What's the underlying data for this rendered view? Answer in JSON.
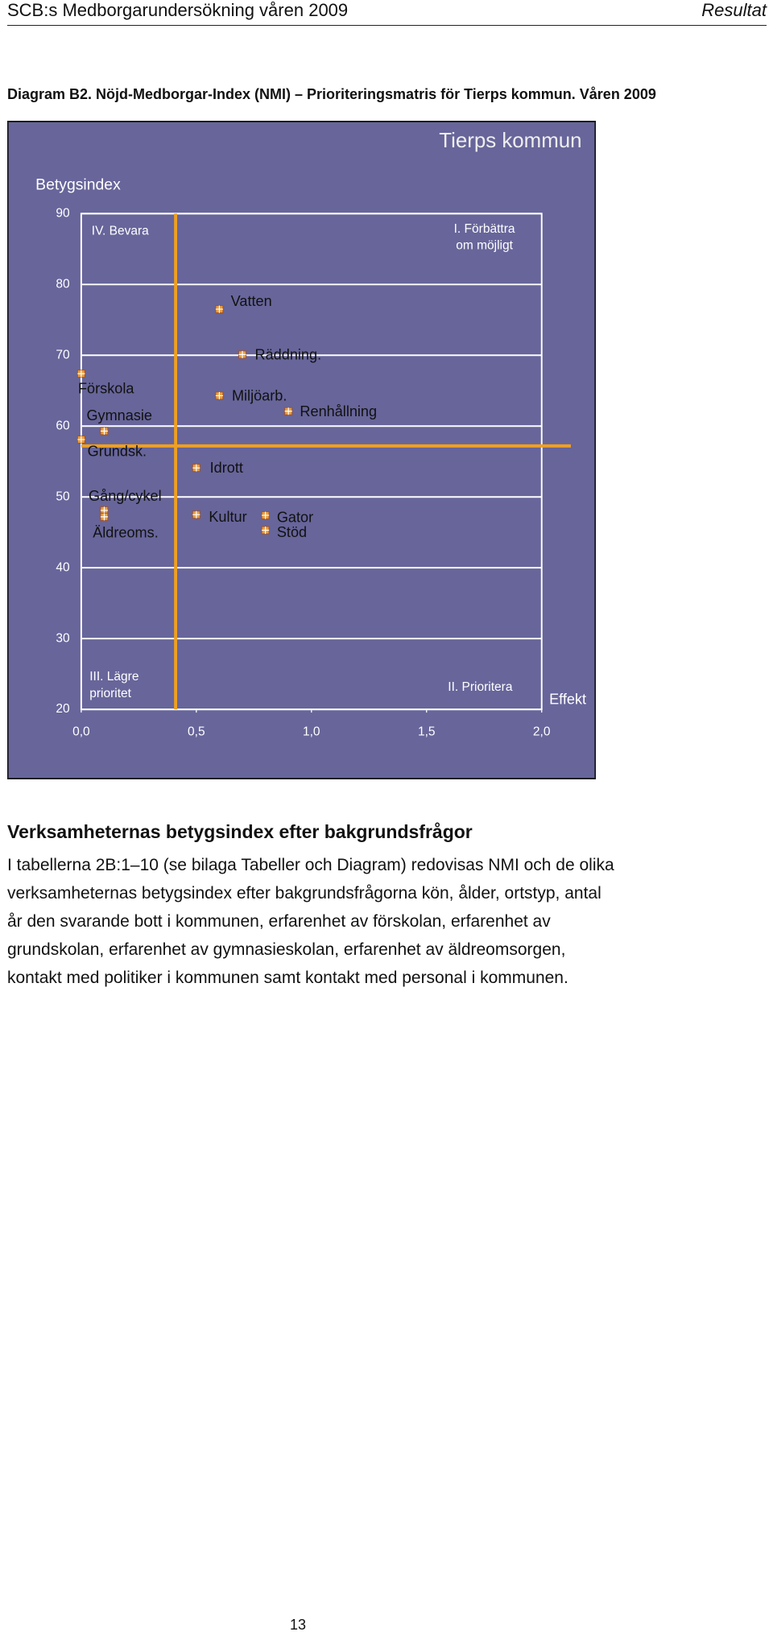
{
  "header": {
    "left": "SCB:s Medborgarundersökning våren 2009",
    "right": "Resultat"
  },
  "caption": "Diagram B2. Nöjd-Medborgar-Index (NMI) – Prioriteringsmatris för Tierps kommun. Våren 2009",
  "chart_data": {
    "type": "scatter",
    "title": "Tierps kommun",
    "y_label": "Betygsindex",
    "x_label": "Effekt",
    "xlim": [
      0,
      2.0
    ],
    "ylim": [
      20,
      90
    ],
    "xticks": [
      {
        "value": 0,
        "label": "0,0"
      },
      {
        "value": 0.5,
        "label": "0,5"
      },
      {
        "value": 1.0,
        "label": "1,0"
      },
      {
        "value": 1.5,
        "label": "1,5"
      },
      {
        "value": 2.0,
        "label": "2,0"
      }
    ],
    "yticks": [
      20,
      30,
      40,
      50,
      60,
      70,
      80,
      90
    ],
    "grid": true,
    "background": "#67659a",
    "marker_color": "#e8a040",
    "reference_color": "#f0a020",
    "x_reference": 0.41,
    "y_reference": 57.2,
    "quadrant_labels": {
      "top_left": [
        "IV. Bevara"
      ],
      "top_right": [
        "I. Förbättra",
        "om möjligt"
      ],
      "bottom_left": [
        "III. Lägre",
        "prioritet"
      ],
      "bottom_right": [
        "II. Prioritera"
      ]
    },
    "points": [
      {
        "label": "Förskola",
        "x": 0.0,
        "y": 67.4
      },
      {
        "label": "Gymnasie",
        "x": 0.1,
        "y": 59.3
      },
      {
        "label": "Grundsk.",
        "x": 0.0,
        "y": 58.1
      },
      {
        "label": "Gång/cykel",
        "x": 0.1,
        "y": 48.1
      },
      {
        "label": "Äldreoms.",
        "x": 0.1,
        "y": 47.2
      },
      {
        "label": "Vatten",
        "x": 0.6,
        "y": 76.5
      },
      {
        "label": "Räddning.",
        "x": 0.7,
        "y": 70.1
      },
      {
        "label": "Miljöarb.",
        "x": 0.6,
        "y": 64.3
      },
      {
        "label": "Renhållning",
        "x": 0.9,
        "y": 62.1
      },
      {
        "label": "Idrott",
        "x": 0.5,
        "y": 54.1
      },
      {
        "label": "Kultur",
        "x": 0.5,
        "y": 47.5
      },
      {
        "label": "Gator",
        "x": 0.8,
        "y": 47.4
      },
      {
        "label": "Stöd",
        "x": 0.8,
        "y": 45.3
      }
    ]
  },
  "section": {
    "heading": "Verksamheternas betygsindex efter bakgrundsfrågor",
    "lines": [
      "I tabellerna 2B:1–10 (se bilaga Tabeller och Diagram) redovisas NMI och de olika",
      "verksamheternas betygsindex efter bakgrundsfrågorna kön, ålder, ortstyp, antal",
      "år den svarande bott i kommunen, erfarenhet av förskolan, erfarenhet av",
      "grundskolan, erfarenhet av gymnasieskolan, erfarenhet av äldreomsorgen,",
      "kontakt med politiker i kommunen samt kontakt med personal i kommunen."
    ]
  },
  "page_number": "13"
}
